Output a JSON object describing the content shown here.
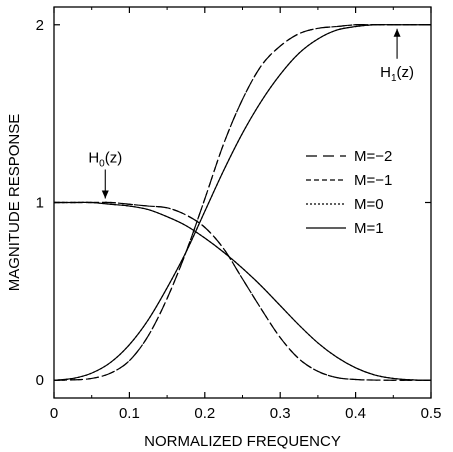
{
  "chart_data": {
    "type": "line",
    "title": "",
    "xlabel": "NORMALIZED FREQUENCY",
    "ylabel": "MAGNITUDE RESPONSE",
    "xlim": [
      0,
      0.5
    ],
    "ylim": [
      -0.1,
      2.1
    ],
    "xticks": [
      0,
      0.1,
      0.2,
      0.3,
      0.4,
      0.5
    ],
    "xtick_labels": [
      "0",
      "0.1",
      "0.2",
      "0.3",
      "0.4",
      "0.5"
    ],
    "yticks": [
      0,
      1,
      2
    ],
    "ytick_labels": [
      "0",
      "1",
      "2"
    ],
    "grid": false,
    "legend_position": "right-center",
    "x": [
      0,
      0.025,
      0.05,
      0.075,
      0.1,
      0.125,
      0.15,
      0.175,
      0.2,
      0.225,
      0.25,
      0.275,
      0.3,
      0.325,
      0.35,
      0.375,
      0.4,
      0.425,
      0.45,
      0.475,
      0.5
    ],
    "series": [
      {
        "name": "M=−2",
        "dash": "long-dash",
        "h0": [
          1.0,
          1.0,
          1.0,
          1.0,
          0.99,
          0.98,
          0.97,
          0.93,
          0.86,
          0.74,
          0.57,
          0.4,
          0.24,
          0.12,
          0.05,
          0.015,
          0.004,
          0.001,
          0.0,
          0.0,
          0.0
        ],
        "h1": [
          0.0,
          0.002,
          0.01,
          0.04,
          0.11,
          0.25,
          0.46,
          0.72,
          1.02,
          1.33,
          1.58,
          1.77,
          1.88,
          1.95,
          1.98,
          1.99,
          2.0,
          2.0,
          2.0,
          2.0,
          2.0
        ]
      },
      {
        "name": "M=−1",
        "dash": "short-dash",
        "h0": [
          1.0,
          1.0,
          1.0,
          1.0,
          0.99,
          0.98,
          0.97,
          0.93,
          0.86,
          0.74,
          0.57,
          0.4,
          0.24,
          0.12,
          0.05,
          0.015,
          0.004,
          0.001,
          0.0,
          0.0,
          0.0
        ],
        "h1": [
          0.0,
          0.002,
          0.01,
          0.04,
          0.11,
          0.25,
          0.46,
          0.72,
          1.02,
          1.33,
          1.58,
          1.77,
          1.88,
          1.95,
          1.98,
          1.99,
          2.0,
          2.0,
          2.0,
          2.0,
          2.0
        ]
      },
      {
        "name": "M=0",
        "dash": "dotted",
        "h0": [
          1.0,
          1.0,
          1.0,
          0.99,
          0.98,
          0.96,
          0.92,
          0.87,
          0.8,
          0.72,
          0.63,
          0.53,
          0.42,
          0.31,
          0.21,
          0.13,
          0.07,
          0.03,
          0.01,
          0.002,
          0.0
        ],
        "h1": [
          0.0,
          0.01,
          0.04,
          0.1,
          0.2,
          0.34,
          0.52,
          0.72,
          0.95,
          1.18,
          1.39,
          1.57,
          1.72,
          1.84,
          1.92,
          1.97,
          1.99,
          2.0,
          2.0,
          2.0,
          2.0
        ]
      },
      {
        "name": "M=1",
        "dash": "solid",
        "h0": [
          1.0,
          1.0,
          1.0,
          0.99,
          0.98,
          0.96,
          0.92,
          0.87,
          0.8,
          0.72,
          0.63,
          0.53,
          0.42,
          0.31,
          0.21,
          0.13,
          0.07,
          0.03,
          0.01,
          0.002,
          0.0
        ],
        "h1": [
          0.0,
          0.01,
          0.04,
          0.1,
          0.2,
          0.34,
          0.52,
          0.72,
          0.95,
          1.18,
          1.39,
          1.57,
          1.72,
          1.84,
          1.92,
          1.97,
          1.99,
          2.0,
          2.0,
          2.0,
          2.0
        ]
      }
    ],
    "annotations": [
      {
        "label": "H",
        "sub": "0",
        "suffix": "(z)",
        "x": 0.068,
        "y": 1.0,
        "arrow": "down"
      },
      {
        "label": "H",
        "sub": "1",
        "suffix": "(z)",
        "x": 0.455,
        "y": 2.0,
        "arrow": "up"
      }
    ]
  }
}
